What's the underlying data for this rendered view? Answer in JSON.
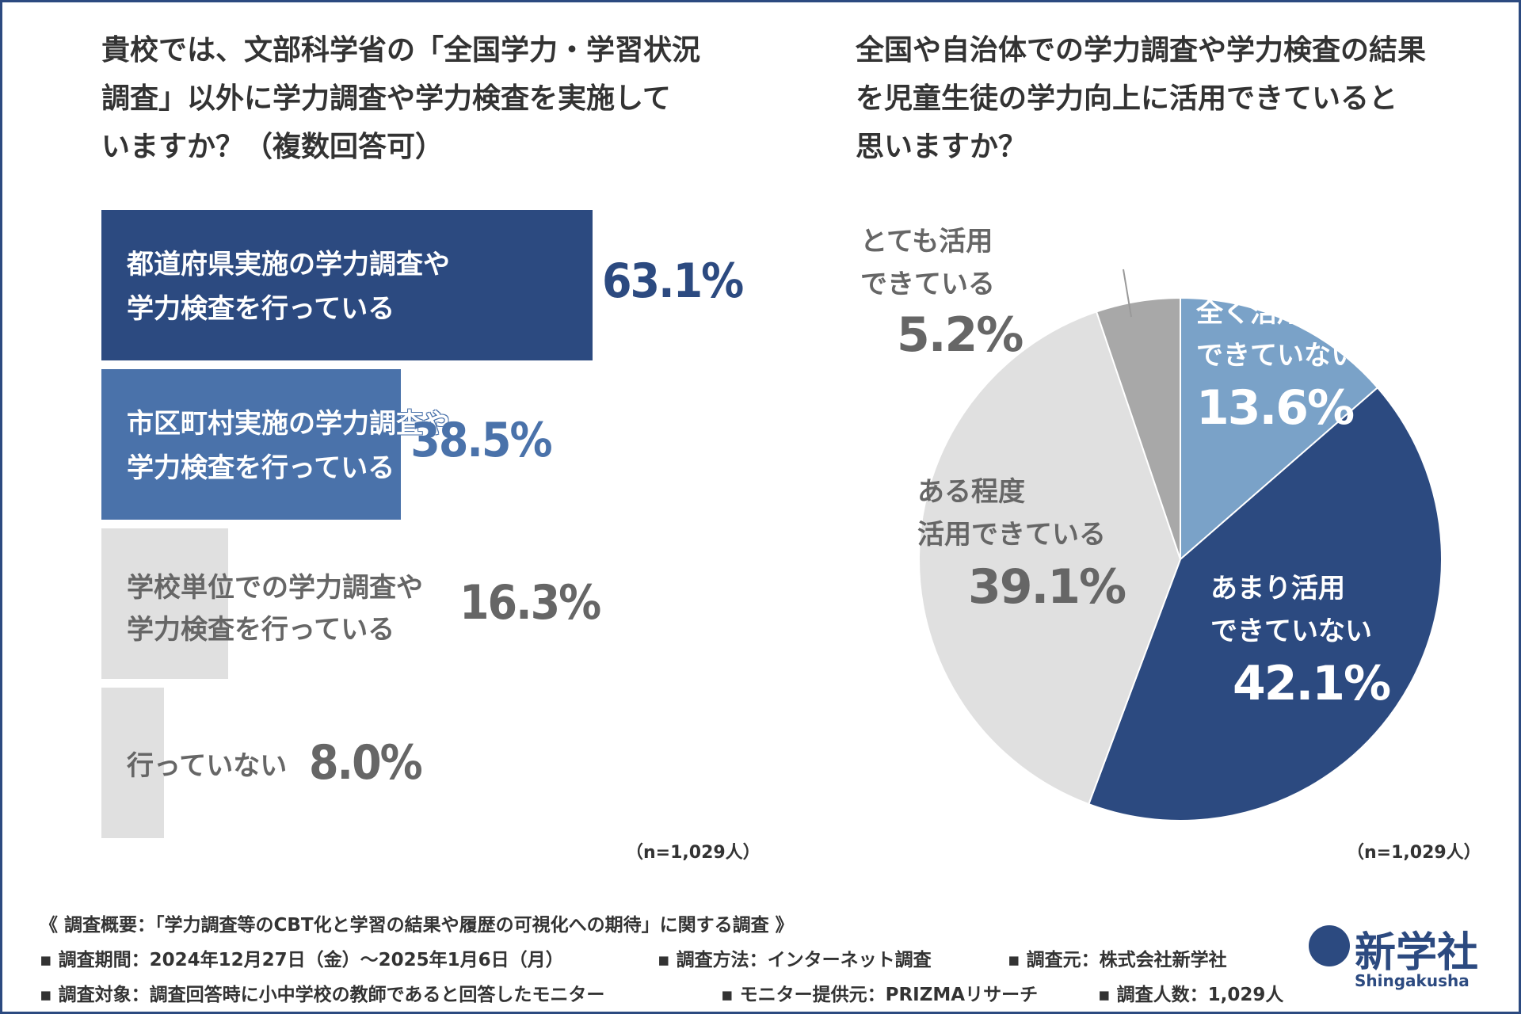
{
  "colors": {
    "dark_blue": "#2c4a80",
    "mid_blue": "#4a72aa",
    "light_blue": "#7aa2c8",
    "light_gray": "#e0e0e0",
    "mid_gray": "#a8a8a8",
    "text_gray": "#666666",
    "border": "#2c4a80"
  },
  "left": {
    "title_lines": [
      "貴校では、文部科学省の「全国学力・学習状況",
      "調査」以外に学力調査や学力検査を実施して",
      "いますか？（複数回答可）"
    ],
    "n_note": "（n=1,029人）"
  },
  "right": {
    "title_lines": [
      "全国や自治体での学力調査や学力検査の結果",
      "を児童生徒の学力向上に活用できていると",
      "思いますか？"
    ],
    "n_note": "（n=1,029人）"
  },
  "chart_data": [
    {
      "type": "bar",
      "orientation": "horizontal",
      "title": "貴校では、文部科学省の「全国学力・学習状況調査」以外に学力調査や学力検査を実施していますか？（複数回答可）",
      "categories": [
        [
          "都道府県実施の学力調査や",
          "学力検査を行っている"
        ],
        [
          "市区町村実施の学力調査や",
          "学力検査を行っている"
        ],
        [
          "学校単位での学力調査や",
          "学力検査を行っている"
        ],
        [
          "行っていない"
        ]
      ],
      "values": [
        63.1,
        38.5,
        16.3,
        8.0
      ],
      "value_labels": [
        "63.1%",
        "38.5%",
        "16.3%",
        "8.0%"
      ],
      "unit": "%",
      "xlim": [
        0,
        100
      ]
    },
    {
      "type": "pie",
      "title": "全国や自治体での学力調査や学力検査の結果を児童生徒の学力向上に活用できていると思いますか？",
      "slices": [
        {
          "label": [
            "全く活用",
            "できていない"
          ],
          "value": 13.6,
          "value_label": "13.6%"
        },
        {
          "label": [
            "あまり活用",
            "できていない"
          ],
          "value": 42.1,
          "value_label": "42.1%"
        },
        {
          "label": [
            "ある程度",
            "活用できている"
          ],
          "value": 39.1,
          "value_label": "39.1%"
        },
        {
          "label": [
            "とても活用",
            "できている"
          ],
          "value": 5.2,
          "value_label": "5.2%"
        }
      ],
      "start": "12 o'clock",
      "direction": "clockwise"
    }
  ],
  "footer": {
    "summary": "《 調査概要：「学力調査等のCBT化と学習の結果や履歴の可視化への期待」に関する調査 》",
    "period": "▪ 調査期間：2024年12月27日（金）〜2025年1月6日（月）",
    "method": "▪ 調査方法：インターネット調査",
    "source": "▪ 調査元：株式会社新学社",
    "target": "▪ 調査対象：調査回答時に小中学校の教師であると回答したモニター",
    "provider": "▪ モニター提供元：PRIZMAリサーチ",
    "count": "▪ 調査人数：1,029人"
  },
  "logo": {
    "name": "新学社",
    "romaji": "Shingakusha"
  }
}
